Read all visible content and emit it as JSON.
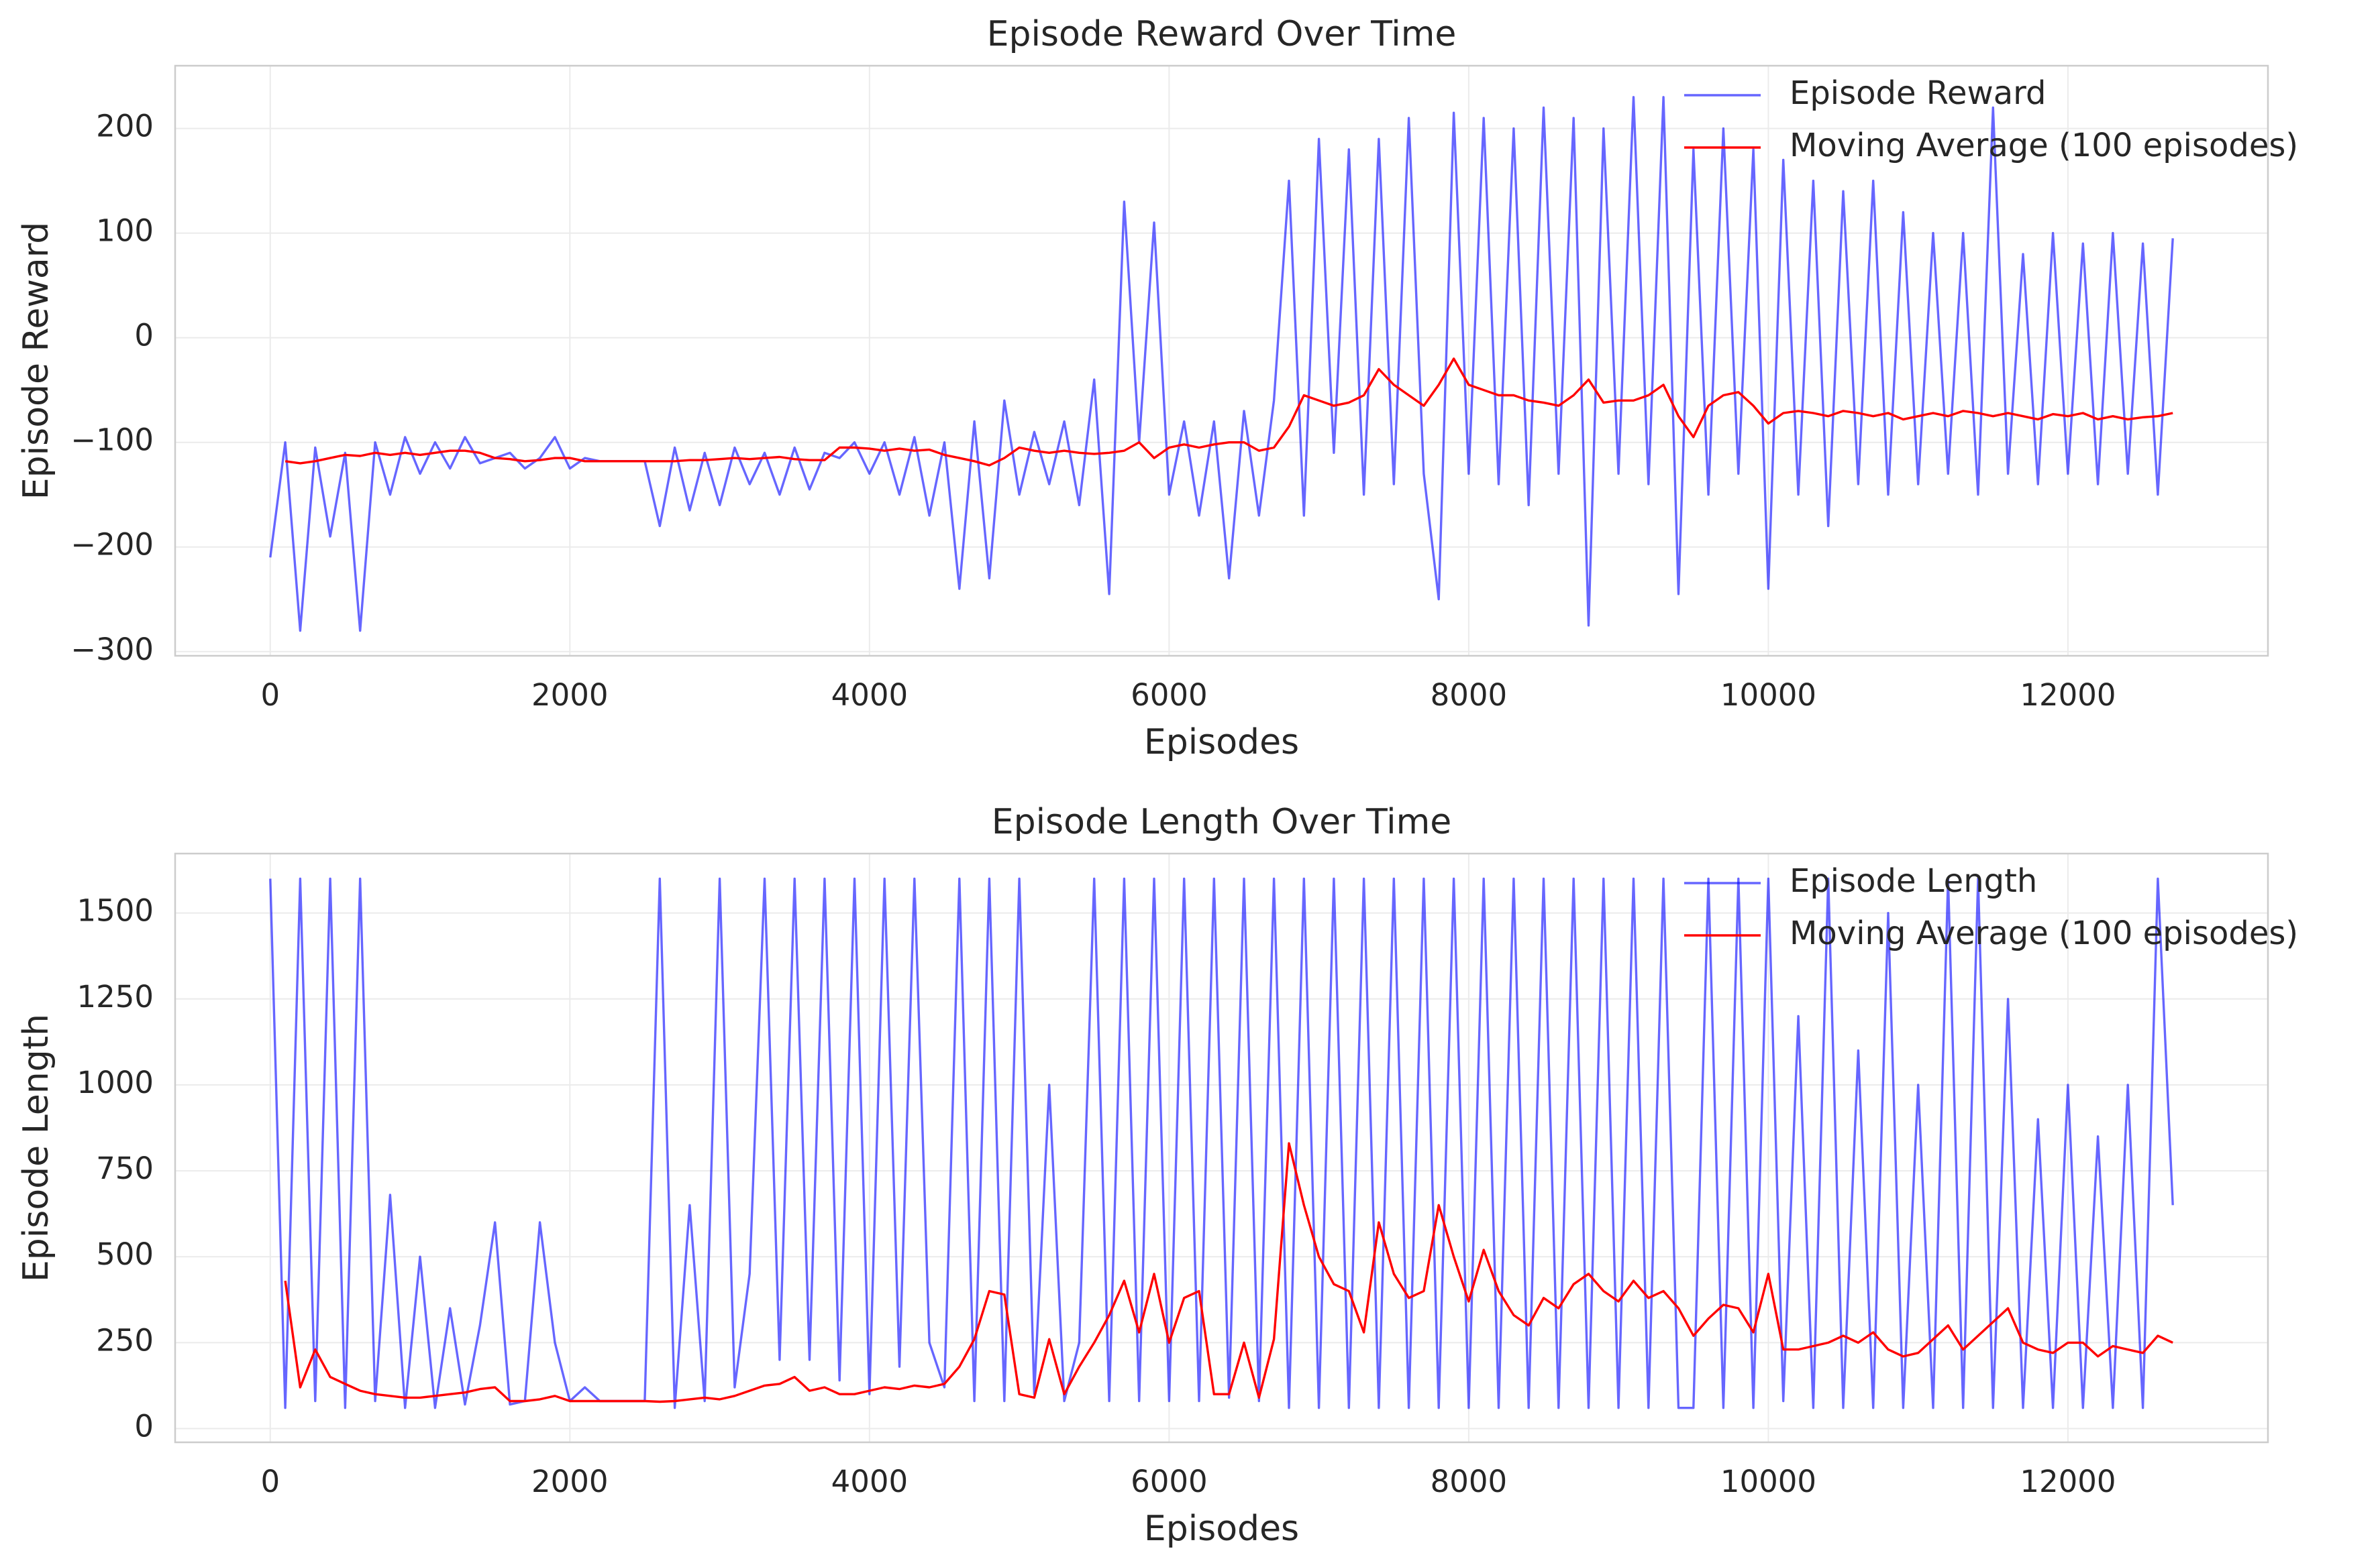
{
  "chart_data": [
    {
      "type": "line",
      "title": "Episode Reward Over Time",
      "xlabel": "Episodes",
      "ylabel": "Episode Reward",
      "x": [
        0,
        100,
        200,
        300,
        400,
        500,
        600,
        700,
        800,
        900,
        1000,
        1100,
        1200,
        1300,
        1400,
        1500,
        1600,
        1700,
        1800,
        1900,
        2000,
        2100,
        2200,
        2300,
        2400,
        2500,
        2600,
        2700,
        2800,
        2900,
        3000,
        3100,
        3200,
        3300,
        3400,
        3500,
        3600,
        3700,
        3800,
        3900,
        4000,
        4100,
        4200,
        4300,
        4400,
        4500,
        4600,
        4700,
        4800,
        4900,
        5000,
        5100,
        5200,
        5300,
        5400,
        5500,
        5600,
        5700,
        5800,
        5900,
        6000,
        6100,
        6200,
        6300,
        6400,
        6500,
        6600,
        6700,
        6800,
        6900,
        7000,
        7100,
        7200,
        7300,
        7400,
        7500,
        7600,
        7700,
        7800,
        7900,
        8000,
        8100,
        8200,
        8300,
        8400,
        8500,
        8600,
        8700,
        8800,
        8900,
        9000,
        9100,
        9200,
        9300,
        9400,
        9500,
        9600,
        9700,
        9800,
        9900,
        10000,
        10100,
        10200,
        10300,
        10400,
        10500,
        10600,
        10700,
        10800,
        10900,
        11000,
        11100,
        11200,
        11300,
        11400,
        11500,
        11600,
        11700,
        11800,
        11900,
        12000,
        12100,
        12200,
        12300,
        12400,
        12500,
        12600,
        12700
      ],
      "series": [
        {
          "name": "Episode Reward",
          "color": "#0000ff",
          "alpha": 0.6,
          "values": [
            -210,
            -100,
            -280,
            -105,
            -190,
            -110,
            -280,
            -100,
            -150,
            -95,
            -130,
            -100,
            -125,
            -95,
            -120,
            -115,
            -110,
            -125,
            -115,
            -95,
            -125,
            -115,
            -118,
            -118,
            -118,
            -118,
            -180,
            -105,
            -165,
            -110,
            -160,
            -105,
            -140,
            -110,
            -150,
            -105,
            -145,
            -110,
            -115,
            -100,
            -130,
            -100,
            -150,
            -95,
            -170,
            -100,
            -240,
            -80,
            -230,
            -60,
            -150,
            -90,
            -140,
            -80,
            -160,
            -40,
            -245,
            130,
            -100,
            110,
            -150,
            -80,
            -170,
            -80,
            -230,
            -70,
            -170,
            -60,
            150,
            -170,
            190,
            -110,
            180,
            -150,
            190,
            -140,
            210,
            -130,
            -250,
            215,
            -130,
            210,
            -140,
            200,
            -160,
            220,
            -130,
            210,
            -275,
            200,
            -130,
            230,
            -140,
            230,
            -245,
            180,
            -150,
            200,
            -130,
            180,
            -240,
            170,
            -150,
            150,
            -180,
            140,
            -140,
            150,
            -150,
            120,
            -140,
            100,
            -130,
            100,
            -150,
            220,
            -130,
            80,
            -140,
            100,
            -130,
            90,
            -140,
            100,
            -130,
            90,
            -150,
            95
          ]
        },
        {
          "name": "Moving Average (100 episodes)",
          "color": "#ff0000",
          "alpha": 1,
          "values": [
            null,
            -118,
            -120,
            -118,
            -115,
            -112,
            -113,
            -110,
            -112,
            -110,
            -112,
            -110,
            -108,
            -108,
            -110,
            -115,
            -116,
            -118,
            -117,
            -115,
            -115,
            -118,
            -118,
            -118,
            -118,
            -118,
            -118,
            -118,
            -117,
            -117,
            -116,
            -115,
            -116,
            -115,
            -114,
            -116,
            -117,
            -117,
            -105,
            -105,
            -106,
            -108,
            -106,
            -108,
            -107,
            -112,
            -115,
            -118,
            -122,
            -115,
            -105,
            -108,
            -110,
            -108,
            -110,
            -111,
            -110,
            -108,
            -100,
            -115,
            -105,
            -102,
            -105,
            -102,
            -100,
            -100,
            -108,
            -105,
            -85,
            -55,
            -60,
            -65,
            -62,
            -55,
            -30,
            -45,
            -55,
            -65,
            -45,
            -20,
            -45,
            -50,
            -55,
            -55,
            -60,
            -62,
            -65,
            -55,
            -40,
            -62,
            -60,
            -60,
            -55,
            -45,
            -75,
            -95,
            -65,
            -55,
            -52,
            -65,
            -82,
            -72,
            -70,
            -72,
            -75,
            -70,
            -72,
            -75,
            -72,
            -78,
            -75,
            -72,
            -75,
            -70,
            -72,
            -75,
            -72,
            -75,
            -78,
            -73,
            -75,
            -72,
            -78,
            -75,
            -78,
            -76,
            -75,
            -72
          ]
        }
      ],
      "xlim": [
        -635,
        13335
      ],
      "xticks": [
        0,
        2000,
        4000,
        6000,
        8000,
        10000,
        12000
      ],
      "ylim": [
        -304,
        260
      ],
      "yticks": [
        {
          "value": -300,
          "label": "−300"
        },
        {
          "value": -200,
          "label": "−200"
        },
        {
          "value": -100,
          "label": "−100"
        },
        0,
        100,
        200
      ],
      "grid": true,
      "legend": "upper right"
    },
    {
      "type": "line",
      "title": "Episode Length Over Time",
      "xlabel": "Episodes",
      "ylabel": "Episode Length",
      "x": [
        0,
        100,
        200,
        300,
        400,
        500,
        600,
        700,
        800,
        900,
        1000,
        1100,
        1200,
        1300,
        1400,
        1500,
        1600,
        1700,
        1800,
        1900,
        2000,
        2100,
        2200,
        2300,
        2400,
        2500,
        2600,
        2700,
        2800,
        2900,
        3000,
        3100,
        3200,
        3300,
        3400,
        3500,
        3600,
        3700,
        3800,
        3900,
        4000,
        4100,
        4200,
        4300,
        4400,
        4500,
        4600,
        4700,
        4800,
        4900,
        5000,
        5100,
        5200,
        5300,
        5400,
        5500,
        5600,
        5700,
        5800,
        5900,
        6000,
        6100,
        6200,
        6300,
        6400,
        6500,
        6600,
        6700,
        6800,
        6900,
        7000,
        7100,
        7200,
        7300,
        7400,
        7500,
        7600,
        7700,
        7800,
        7900,
        8000,
        8100,
        8200,
        8300,
        8400,
        8500,
        8600,
        8700,
        8800,
        8900,
        9000,
        9100,
        9200,
        9300,
        9400,
        9500,
        9600,
        9700,
        9800,
        9900,
        10000,
        10100,
        10200,
        10300,
        10400,
        10500,
        10600,
        10700,
        10800,
        10900,
        11000,
        11100,
        11200,
        11300,
        11400,
        11500,
        11600,
        11700,
        11800,
        11900,
        12000,
        12100,
        12200,
        12300,
        12400,
        12500,
        12600,
        12700
      ],
      "series": [
        {
          "name": "Episode Length",
          "color": "#0000ff",
          "alpha": 0.6,
          "values": [
            1600,
            60,
            1600,
            80,
            1600,
            60,
            1600,
            80,
            680,
            60,
            500,
            60,
            350,
            70,
            300,
            600,
            70,
            80,
            600,
            250,
            80,
            120,
            80,
            80,
            80,
            80,
            1600,
            60,
            650,
            80,
            1600,
            120,
            450,
            1600,
            200,
            1600,
            200,
            1600,
            140,
            1600,
            100,
            1600,
            180,
            1600,
            250,
            120,
            1600,
            80,
            1600,
            80,
            1600,
            100,
            1000,
            80,
            250,
            1600,
            80,
            1600,
            80,
            1600,
            80,
            1600,
            80,
            1600,
            90,
            1600,
            80,
            1600,
            60,
            1600,
            60,
            1600,
            60,
            1600,
            60,
            1600,
            60,
            1600,
            60,
            1600,
            60,
            1600,
            60,
            1600,
            60,
            1600,
            60,
            1600,
            60,
            1600,
            60,
            1600,
            60,
            1600,
            60,
            60,
            1600,
            60,
            1600,
            60,
            1600,
            80,
            1200,
            60,
            1600,
            60,
            1100,
            60,
            1500,
            60,
            1000,
            60,
            1600,
            60,
            1600,
            60,
            1250,
            60,
            900,
            60,
            1000,
            60,
            850,
            60,
            1000,
            60,
            1600,
            650
          ]
        },
        {
          "name": "Moving Average (100 episodes)",
          "color": "#ff0000",
          "alpha": 1,
          "values": [
            null,
            430,
            120,
            230,
            150,
            130,
            110,
            100,
            95,
            90,
            90,
            95,
            100,
            105,
            115,
            120,
            80,
            80,
            85,
            95,
            80,
            80,
            80,
            80,
            80,
            80,
            78,
            80,
            85,
            90,
            85,
            95,
            110,
            125,
            130,
            150,
            110,
            120,
            100,
            100,
            110,
            120,
            115,
            125,
            120,
            130,
            180,
            260,
            400,
            390,
            100,
            90,
            260,
            100,
            180,
            250,
            330,
            430,
            280,
            450,
            250,
            380,
            400,
            100,
            100,
            250,
            90,
            260,
            830,
            650,
            500,
            420,
            400,
            280,
            600,
            450,
            380,
            400,
            650,
            500,
            370,
            520,
            400,
            330,
            300,
            380,
            350,
            420,
            450,
            400,
            370,
            430,
            380,
            400,
            350,
            270,
            320,
            360,
            350,
            280,
            450,
            230,
            230,
            240,
            250,
            270,
            250,
            280,
            230,
            210,
            220,
            260,
            300,
            230,
            270,
            310,
            350,
            250,
            230,
            220,
            250,
            250,
            210,
            240,
            230,
            220,
            270,
            250
          ]
        }
      ],
      "xlim": [
        -635,
        13335
      ],
      "xticks": [
        0,
        2000,
        4000,
        6000,
        8000,
        10000,
        12000
      ],
      "ylim": [
        -40,
        1673
      ],
      "yticks": [
        0,
        250,
        500,
        750,
        1000,
        1250,
        1500
      ],
      "grid": true,
      "legend": "upper right"
    }
  ]
}
